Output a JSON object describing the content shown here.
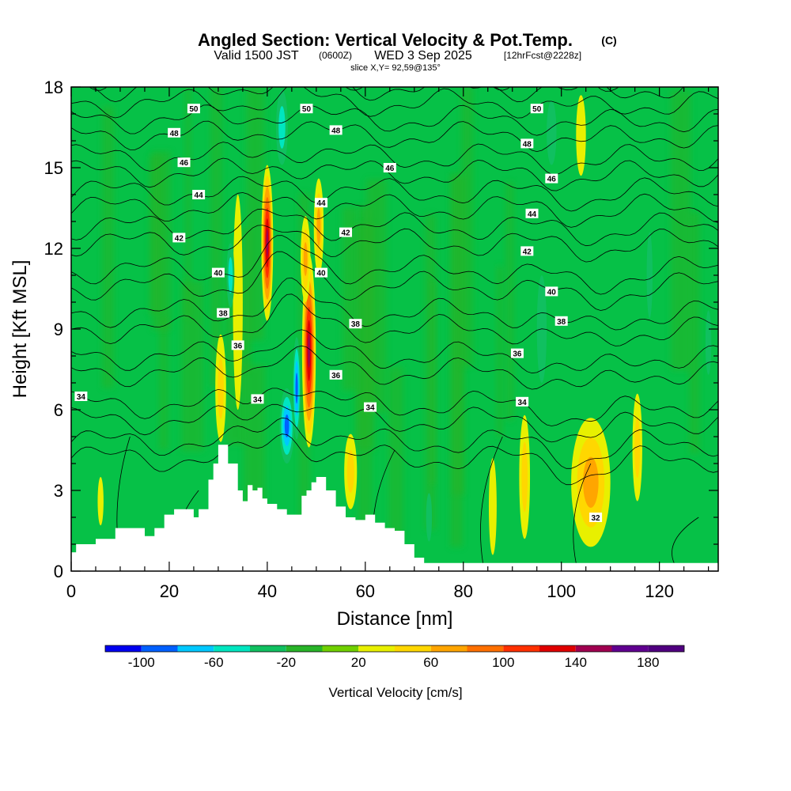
{
  "title": {
    "main": "Angled Section: Vertical Velocity & Pot.Temp.",
    "copyright": "(C)",
    "valid_prefix": "Valid 1500 JST",
    "valid_utc": "(0600Z)",
    "valid_date": "WED 3 Sep 2025",
    "forecast": "[12hrFcst@2228z]",
    "slice": "slice X,Y= 92,59@135°"
  },
  "chart_data": {
    "type": "heatmap",
    "xlabel": "Distance [nm]",
    "ylabel": "Height [Kft MSL]",
    "xlim": [
      0,
      132
    ],
    "ylim": [
      0,
      18
    ],
    "x_ticks": [
      "0",
      "20",
      "40",
      "60",
      "80",
      "100",
      "120"
    ],
    "y_ticks": [
      "0",
      "3",
      "6",
      "9",
      "12",
      "15",
      "18"
    ],
    "colorbar": {
      "label": "Vertical Velocity [cm/s]",
      "tick_labels": [
        "-100",
        "-60",
        "-20",
        "20",
        "60",
        "100",
        "140",
        "180"
      ],
      "bins": [
        -120,
        -100,
        -80,
        -60,
        -40,
        -20,
        0,
        20,
        40,
        60,
        80,
        100,
        120,
        140,
        160,
        180,
        200
      ],
      "colors": [
        "#0000f0",
        "#0060ff",
        "#00c8ff",
        "#00e6c0",
        "#10c060",
        "#28b428",
        "#70d000",
        "#e8f000",
        "#ffd700",
        "#ffa500",
        "#ff7000",
        "#ff3000",
        "#e00000",
        "#a00050",
        "#600090",
        "#500080"
      ]
    },
    "background_colors": {
      "main": "#06c147",
      "dark": "#28b428"
    },
    "contour_levels": [
      "32",
      "34",
      "36",
      "38",
      "40",
      "42",
      "44",
      "46",
      "48",
      "50"
    ],
    "contour_labels": [
      {
        "text": "50",
        "x": 25,
        "y": 17.2
      },
      {
        "text": "50",
        "x": 48,
        "y": 17.2
      },
      {
        "text": "50",
        "x": 95,
        "y": 17.2
      },
      {
        "text": "48",
        "x": 21,
        "y": 16.3
      },
      {
        "text": "48",
        "x": 54,
        "y": 16.4
      },
      {
        "text": "48",
        "x": 93,
        "y": 15.9
      },
      {
        "text": "46",
        "x": 23,
        "y": 15.2
      },
      {
        "text": "46",
        "x": 65,
        "y": 15.0
      },
      {
        "text": "46",
        "x": 98,
        "y": 14.6
      },
      {
        "text": "44",
        "x": 26,
        "y": 14.0
      },
      {
        "text": "44",
        "x": 51,
        "y": 13.7
      },
      {
        "text": "44",
        "x": 94,
        "y": 13.3
      },
      {
        "text": "42",
        "x": 22,
        "y": 12.4
      },
      {
        "text": "42",
        "x": 56,
        "y": 12.6
      },
      {
        "text": "42",
        "x": 93,
        "y": 11.9
      },
      {
        "text": "40",
        "x": 30,
        "y": 11.1
      },
      {
        "text": "40",
        "x": 51,
        "y": 11.1
      },
      {
        "text": "40",
        "x": 98,
        "y": 10.4
      },
      {
        "text": "38",
        "x": 31,
        "y": 9.6
      },
      {
        "text": "38",
        "x": 58,
        "y": 9.2
      },
      {
        "text": "38",
        "x": 100,
        "y": 9.3
      },
      {
        "text": "36",
        "x": 34,
        "y": 8.4
      },
      {
        "text": "36",
        "x": 54,
        "y": 7.3
      },
      {
        "text": "36",
        "x": 91,
        "y": 8.1
      },
      {
        "text": "34",
        "x": 2,
        "y": 6.5
      },
      {
        "text": "34",
        "x": 38,
        "y": 6.4
      },
      {
        "text": "34",
        "x": 61,
        "y": 6.1
      },
      {
        "text": "34",
        "x": 92,
        "y": 6.3
      },
      {
        "text": "32",
        "x": 107,
        "y": 2.0
      }
    ],
    "terrain": [
      [
        0,
        0.7
      ],
      [
        1,
        1.0
      ],
      [
        5,
        1.2
      ],
      [
        9,
        1.6
      ],
      [
        13,
        1.6
      ],
      [
        15,
        1.3
      ],
      [
        17,
        1.6
      ],
      [
        19,
        2.1
      ],
      [
        21,
        2.3
      ],
      [
        25,
        2.0
      ],
      [
        26,
        2.3
      ],
      [
        28,
        3.4
      ],
      [
        29,
        4.0
      ],
      [
        30,
        4.7
      ],
      [
        32,
        4.0
      ],
      [
        34,
        3.0
      ],
      [
        35,
        2.6
      ],
      [
        36,
        3.2
      ],
      [
        37,
        3.0
      ],
      [
        38,
        3.1
      ],
      [
        39,
        2.7
      ],
      [
        40,
        2.5
      ],
      [
        42,
        2.3
      ],
      [
        44,
        2.1
      ],
      [
        46,
        2.1
      ],
      [
        47,
        2.8
      ],
      [
        48,
        3.0
      ],
      [
        49,
        3.3
      ],
      [
        50,
        3.5
      ],
      [
        52,
        3.0
      ],
      [
        54,
        2.4
      ],
      [
        56,
        2.0
      ],
      [
        58,
        1.9
      ],
      [
        60,
        2.1
      ],
      [
        62,
        1.8
      ],
      [
        64,
        1.6
      ],
      [
        66,
        1.5
      ],
      [
        68,
        1.0
      ],
      [
        70,
        0.5
      ],
      [
        72,
        0.3
      ],
      [
        132,
        0.3
      ]
    ],
    "updrafts": [
      {
        "x": 40.0,
        "y": 12.2,
        "rx": 1.2,
        "ry": 2.9,
        "max": 150
      },
      {
        "x": 48.5,
        "y": 8.2,
        "rx": 1.4,
        "ry": 3.6,
        "max": 155
      },
      {
        "x": 47.8,
        "y": 11.6,
        "rx": 1.0,
        "ry": 1.6,
        "max": 70
      },
      {
        "x": 50.5,
        "y": 12.8,
        "rx": 1.0,
        "ry": 1.8,
        "max": 60
      },
      {
        "x": 30.5,
        "y": 6.8,
        "rx": 1.1,
        "ry": 2.0,
        "max": 55
      },
      {
        "x": 106.0,
        "y": 3.3,
        "rx": 4.0,
        "ry": 2.4,
        "max": 75
      },
      {
        "x": 92.5,
        "y": 3.5,
        "rx": 1.1,
        "ry": 2.3,
        "max": 55
      },
      {
        "x": 115.5,
        "y": 4.6,
        "rx": 1.0,
        "ry": 2.0,
        "max": 45
      },
      {
        "x": 57.0,
        "y": 3.7,
        "rx": 1.3,
        "ry": 1.4,
        "max": 45
      },
      {
        "x": 104.0,
        "y": 16.2,
        "rx": 1.0,
        "ry": 1.5,
        "max": 30
      },
      {
        "x": 34.0,
        "y": 10.0,
        "rx": 1.0,
        "ry": 4.0,
        "max": 25
      },
      {
        "x": 6.0,
        "y": 2.6,
        "rx": 0.6,
        "ry": 0.9,
        "max": 35
      },
      {
        "x": 86.0,
        "y": 2.4,
        "rx": 0.8,
        "ry": 1.8,
        "max": 35
      }
    ],
    "downdrafts": [
      {
        "x": 44.0,
        "y": 5.4,
        "rx": 1.5,
        "ry": 1.4,
        "min": -90
      },
      {
        "x": 46.0,
        "y": 6.8,
        "rx": 0.8,
        "ry": 1.9,
        "min": -80
      },
      {
        "x": 43.0,
        "y": 16.5,
        "rx": 1.2,
        "ry": 1.4,
        "min": -45
      },
      {
        "x": 32.5,
        "y": 11.0,
        "rx": 0.8,
        "ry": 1.2,
        "min": -40
      },
      {
        "x": 96.0,
        "y": 9.0,
        "rx": 1.0,
        "ry": 2.0,
        "min": -35
      },
      {
        "x": 98.0,
        "y": 16.3,
        "rx": 1.0,
        "ry": 1.2,
        "min": -30
      },
      {
        "x": 118.0,
        "y": 11.0,
        "rx": 0.6,
        "ry": 1.6,
        "min": -35
      },
      {
        "x": 130.0,
        "y": 8.5,
        "rx": 0.6,
        "ry": 1.2,
        "min": -30
      },
      {
        "x": 73.0,
        "y": 2.0,
        "rx": 0.6,
        "ry": 0.9,
        "min": -30
      }
    ]
  }
}
